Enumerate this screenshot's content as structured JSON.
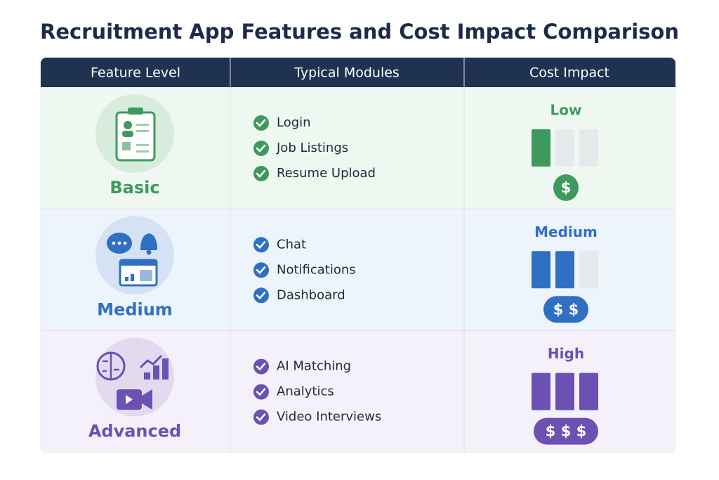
{
  "title": "Recruitment App Features and Cost Impact Comparison",
  "table": {
    "headers": [
      "Feature Level",
      "Typical Modules",
      "Cost Impact"
    ],
    "rows": [
      {
        "level": "Basic",
        "modules": [
          "Login",
          "Job Listings",
          "Resume Upload"
        ],
        "cost": "Low",
        "cost_level": 1,
        "price": "$",
        "color": "#3e9a5c",
        "background": "#eef8f0"
      },
      {
        "level": "Medium",
        "modules": [
          "Chat",
          "Notifications",
          "Dashboard"
        ],
        "cost": "Medium",
        "cost_level": 2,
        "price": "$ $",
        "color": "#2f70c3",
        "background": "#eef4fc"
      },
      {
        "level": "Advanced",
        "modules": [
          "AI Matching",
          "Analytics",
          "Video Interviews"
        ],
        "cost": "High",
        "cost_level": 3,
        "price": "$ $ $",
        "color": "#6d50b3",
        "background": "#f4f1fa"
      }
    ]
  }
}
